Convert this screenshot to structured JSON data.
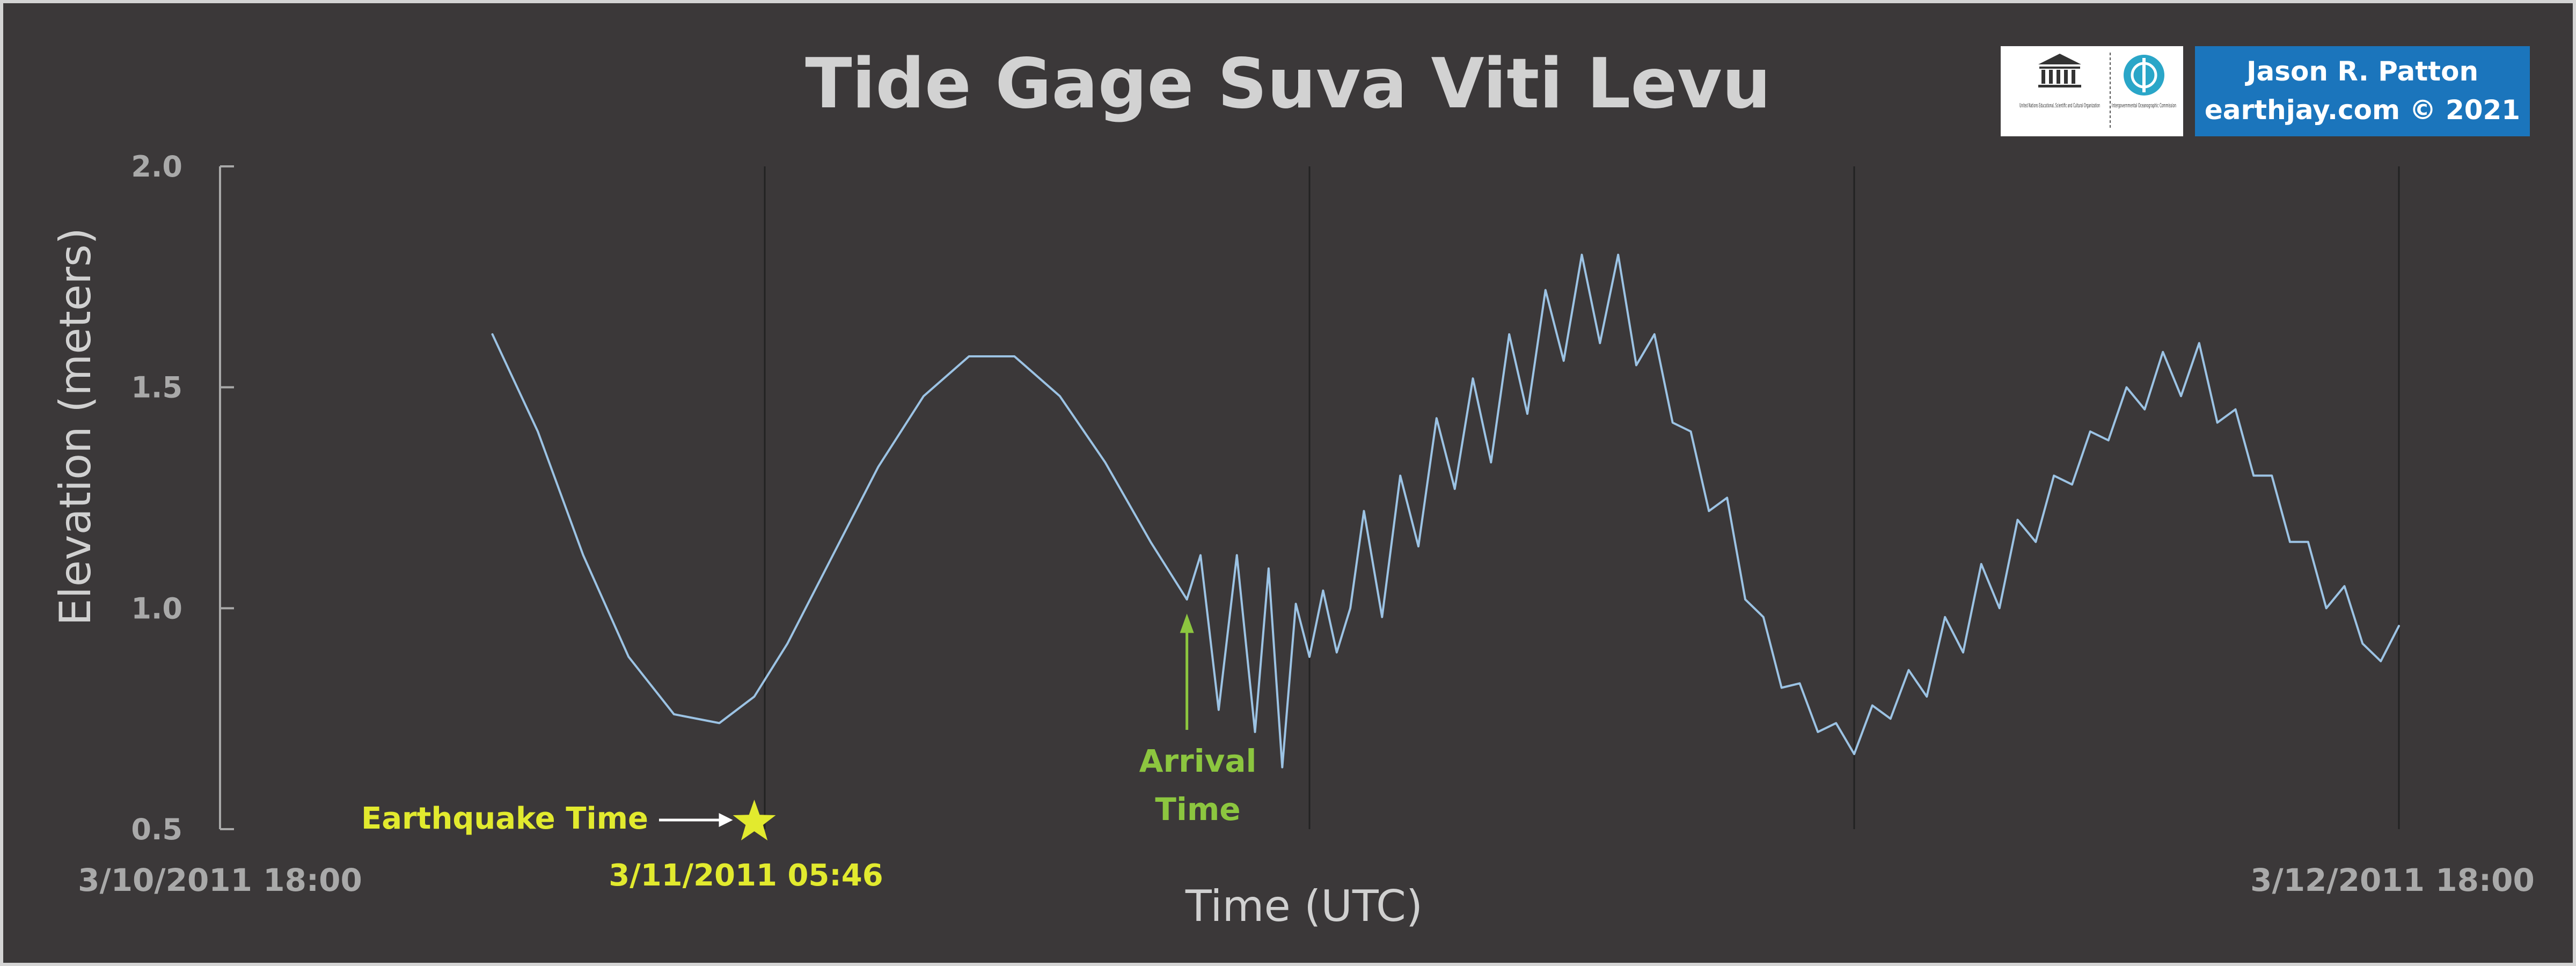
{
  "chart_data": {
    "type": "line",
    "title": "Tide Gage Suva Viti Levu",
    "xlabel": "Time (UTC)",
    "ylabel": "Elevation (meters)",
    "ylim": [
      0.5,
      2.0
    ],
    "xlim_hours": [
      0,
      48
    ],
    "yticks": [
      "2.0",
      "1.5",
      "1.0",
      "0.5"
    ],
    "yticks_values": [
      2.0,
      1.5,
      1.0,
      0.5
    ],
    "xticks": [
      "3/10/2011 18:00",
      "3/12/2011 18:00"
    ],
    "vertical_gridlines_hours": [
      12,
      24,
      36,
      48
    ],
    "earthquake": {
      "label": "Earthquake Time",
      "time_label": "3/11/2011 05:46",
      "hours": 11.77
    },
    "arrival": {
      "label_line1": "Arrival",
      "label_line2": "Time",
      "hours": 21.3,
      "value": 1.0
    },
    "series": [
      {
        "color": "#9cc3e4",
        "x": [
          6,
          7,
          8,
          9,
          10,
          11,
          11.77,
          12.5,
          13.5,
          14.5,
          15.5,
          16.5,
          17.5,
          18.5,
          19.5,
          20.5,
          21.3
        ],
        "values": [
          1.62,
          1.4,
          1.12,
          0.89,
          0.76,
          0.74,
          0.8,
          0.92,
          1.12,
          1.32,
          1.48,
          1.57,
          1.57,
          1.48,
          1.33,
          1.15,
          1.02
        ]
      },
      {
        "color": "#9cc3e4",
        "x": [
          21.3,
          21.6,
          22.0,
          22.4,
          22.8,
          23.1,
          23.4,
          23.7,
          24.0,
          24.3,
          24.6,
          24.9,
          25.2,
          25.6,
          26.0,
          26.4,
          26.8,
          27.2,
          27.6,
          28.0,
          28.4,
          28.8,
          29.2,
          29.6,
          30.0,
          30.4,
          30.8,
          31.2,
          31.6,
          32.0,
          32.4,
          32.8,
          33.2,
          33.6,
          34.0,
          34.4,
          34.8,
          35.2,
          35.6,
          36.0,
          36.4,
          36.8,
          37.2,
          37.6,
          38.0,
          38.4,
          38.8,
          39.2,
          39.6,
          40.0,
          40.4,
          40.8,
          41.2,
          41.6,
          42.0,
          42.4,
          42.8,
          43.2,
          43.6,
          44.0,
          44.4,
          44.8,
          45.2,
          45.6,
          46.0,
          46.4,
          46.8,
          47.2,
          47.6,
          48.0
        ],
        "values": [
          1.02,
          1.12,
          0.77,
          1.12,
          0.72,
          1.09,
          0.64,
          1.01,
          0.89,
          1.04,
          0.9,
          1.0,
          1.22,
          0.98,
          1.3,
          1.14,
          1.43,
          1.27,
          1.52,
          1.33,
          1.62,
          1.44,
          1.72,
          1.56,
          1.8,
          1.6,
          1.8,
          1.55,
          1.62,
          1.42,
          1.4,
          1.22,
          1.25,
          1.02,
          0.98,
          0.82,
          0.83,
          0.72,
          0.74,
          0.67,
          0.78,
          0.75,
          0.86,
          0.8,
          0.98,
          0.9,
          1.1,
          1.0,
          1.2,
          1.15,
          1.3,
          1.28,
          1.4,
          1.38,
          1.5,
          1.45,
          1.58,
          1.48,
          1.6,
          1.42,
          1.45,
          1.3,
          1.3,
          1.15,
          1.15,
          1.0,
          1.05,
          0.92,
          0.88,
          0.96
        ]
      }
    ]
  },
  "logos": {
    "unesco": {
      "caption": "United Nations Educational, Scientific and Cultural Organization"
    },
    "ioc": {
      "caption": "Intergovernmental Oceanographic Commission"
    }
  },
  "credit": {
    "line1": "Jason R. Patton",
    "line2": "earthjay.com © 2021",
    "bg": "#1b75bc"
  },
  "colors": {
    "background": "#3b3839",
    "line": "#9cc3e4",
    "earthquake": "#e2ea2e",
    "arrival": "#8cc63f",
    "gridline": "#222222"
  }
}
